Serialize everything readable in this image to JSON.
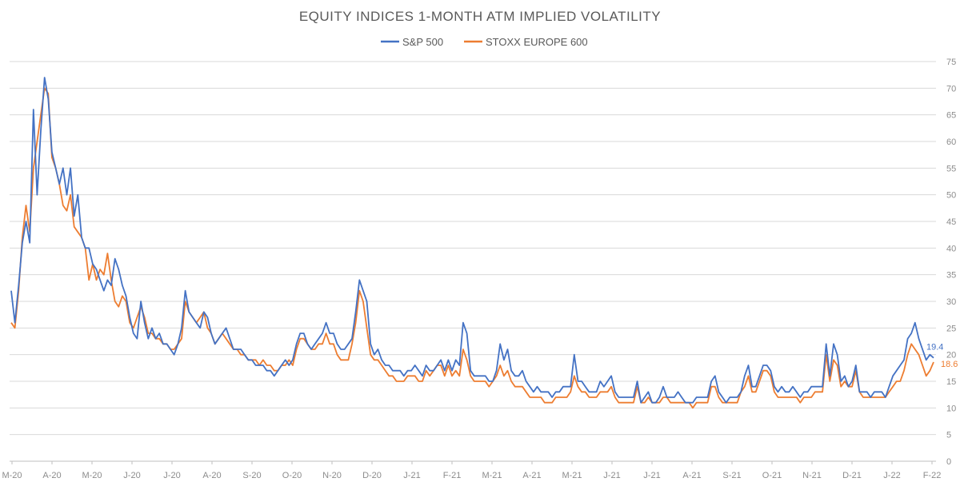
{
  "chart_data": {
    "type": "line",
    "title": "EQUITY INDICES 1-MONTH ATM IMPLIED VOLATILITY",
    "ylim": [
      0,
      75
    ],
    "yticks": [
      0,
      5,
      10,
      15,
      20,
      25,
      30,
      35,
      40,
      45,
      50,
      55,
      60,
      65,
      70,
      75
    ],
    "grid": true,
    "legend_position": "top",
    "y_axis_side": "right",
    "x_tick_labels": [
      "M-20",
      "A-20",
      "M-20",
      "J-20",
      "J-20",
      "A-20",
      "S-20",
      "O-20",
      "N-20",
      "D-20",
      "J-21",
      "F-21",
      "M-21",
      "A-21",
      "M-21",
      "J-21",
      "J-21",
      "A-21",
      "S-21",
      "O-21",
      "N-21",
      "D-21",
      "J-22",
      "F-22"
    ],
    "last_value_labels": {
      "sp500": "19.4",
      "stoxx": "18.6"
    },
    "series": [
      {
        "name": "S&P 500",
        "color": "#4472C4",
        "values": [
          32,
          26,
          33,
          41,
          45,
          41,
          66,
          50,
          62,
          72,
          68,
          58,
          55,
          52,
          55,
          50,
          55,
          46,
          50,
          42,
          40,
          40,
          37,
          36,
          34,
          32,
          34,
          33,
          38,
          36,
          33,
          31,
          27,
          24,
          23,
          30,
          26,
          23,
          25,
          23,
          24,
          22,
          22,
          21,
          20,
          22,
          25,
          32,
          28,
          27,
          26,
          25,
          28,
          27,
          24,
          22,
          23,
          24,
          25,
          23,
          21,
          21,
          21,
          20,
          19,
          19,
          18,
          18,
          18,
          17,
          17,
          16,
          17,
          18,
          19,
          18,
          19,
          22,
          24,
          24,
          22,
          21,
          22,
          23,
          24,
          26,
          24,
          24,
          22,
          21,
          21,
          22,
          23,
          28,
          34,
          32,
          30,
          22,
          20,
          21,
          19,
          18,
          18,
          17,
          17,
          17,
          16,
          17,
          17,
          18,
          17,
          16,
          18,
          17,
          17,
          18,
          19,
          17,
          19,
          17,
          19,
          18,
          26,
          24,
          17,
          16,
          16,
          16,
          16,
          15,
          15,
          17,
          22,
          19,
          21,
          17,
          16,
          16,
          17,
          15,
          14,
          13,
          14,
          13,
          13,
          13,
          12,
          13,
          13,
          14,
          14,
          14,
          20,
          15,
          15,
          14,
          13,
          13,
          13,
          15,
          14,
          15,
          16,
          13,
          12,
          12,
          12,
          12,
          12,
          15,
          11,
          12,
          13,
          11,
          11,
          12,
          14,
          12,
          12,
          12,
          13,
          12,
          11,
          11,
          11,
          12,
          12,
          12,
          12,
          15,
          16,
          13,
          12,
          11,
          12,
          12,
          12,
          13,
          16,
          18,
          14,
          14,
          16,
          18,
          18,
          17,
          14,
          13,
          14,
          13,
          13,
          14,
          13,
          12,
          13,
          13,
          14,
          14,
          14,
          14,
          22,
          16,
          22,
          20,
          15,
          16,
          14,
          15,
          18,
          13,
          13,
          13,
          12,
          13,
          13,
          13,
          12,
          14,
          16,
          17,
          18,
          19,
          23,
          24,
          26,
          23,
          21,
          19,
          20,
          19.4
        ]
      },
      {
        "name": "STOXX EUROPE 600",
        "color": "#ED7D31",
        "values": [
          26,
          25,
          32,
          42,
          48,
          43,
          55,
          60,
          65,
          70,
          69,
          57,
          55,
          52,
          48,
          47,
          50,
          44,
          43,
          42,
          40,
          34,
          37,
          34,
          36,
          35,
          39,
          34,
          30,
          29,
          31,
          30,
          26,
          25,
          27,
          29,
          27,
          24,
          24,
          23,
          23,
          22,
          22,
          21,
          21,
          22,
          23,
          30,
          28,
          27,
          26,
          27,
          28,
          25,
          24,
          22,
          23,
          24,
          23,
          22,
          21,
          21,
          20,
          20,
          19,
          19,
          19,
          18,
          19,
          18,
          18,
          17,
          17,
          18,
          18,
          19,
          18,
          21,
          23,
          23,
          22,
          21,
          21,
          22,
          22,
          24,
          22,
          22,
          20,
          19,
          19,
          19,
          22,
          26,
          32,
          30,
          25,
          20,
          19,
          19,
          18,
          17,
          16,
          16,
          15,
          15,
          15,
          16,
          16,
          16,
          15,
          15,
          17,
          16,
          17,
          18,
          18,
          16,
          18,
          16,
          17,
          16,
          21,
          19,
          16,
          15,
          15,
          15,
          15,
          14,
          15,
          16,
          18,
          16,
          17,
          15,
          14,
          14,
          14,
          13,
          12,
          12,
          12,
          12,
          11,
          11,
          11,
          12,
          12,
          12,
          12,
          13,
          16,
          14,
          13,
          13,
          12,
          12,
          12,
          13,
          13,
          13,
          14,
          12,
          11,
          11,
          11,
          11,
          11,
          14,
          11,
          11,
          12,
          11,
          11,
          11,
          12,
          12,
          11,
          11,
          11,
          11,
          11,
          11,
          10,
          11,
          11,
          11,
          11,
          14,
          14,
          12,
          11,
          11,
          11,
          11,
          11,
          13,
          14,
          16,
          13,
          13,
          15,
          17,
          17,
          16,
          13,
          12,
          12,
          12,
          12,
          12,
          12,
          11,
          12,
          12,
          12,
          13,
          13,
          13,
          20,
          15,
          19,
          18,
          14,
          15,
          14,
          14,
          17,
          13,
          12,
          12,
          12,
          12,
          12,
          12,
          12,
          13,
          14,
          15,
          15,
          17,
          20,
          22,
          21,
          20,
          18,
          16,
          17,
          18.6
        ]
      }
    ]
  }
}
